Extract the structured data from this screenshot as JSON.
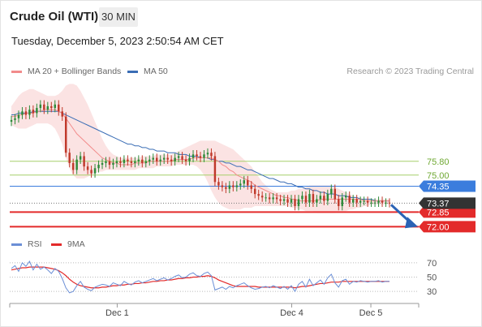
{
  "header": {
    "instrument": "Crude Oil (WTI)",
    "interval": "30 MIN",
    "timestamp": "Tuesday, December 5, 2023 2:50:54 AM CET"
  },
  "legend": {
    "ma20_label": "MA 20 + Bollinger Bands",
    "ma50_label": "MA 50",
    "copyright": "Research © 2023 Trading Central"
  },
  "rsi_legend": {
    "rsi_label": "RSI",
    "ma_label": "9MA"
  },
  "colors": {
    "ma20": "#f28b8b",
    "ma50": "#3a6db5",
    "bollinger_fill": "#fbe0e0",
    "candle_up": "#2e8b3a",
    "candle_down": "#c0392b",
    "resistance": "#a6cf6b",
    "pivot": "#3b7ddd",
    "support": "#e32a2a",
    "current": "#333333",
    "rsi": "#6b8fd6",
    "rsi_ma": "#e32a2a"
  },
  "chart_data": [
    {
      "type": "candlestick",
      "x_labels": [
        "Dec 1",
        "Dec 4",
        "Dec 5"
      ],
      "levels": [
        {
          "value": 75.8,
          "label": "75.80",
          "kind": "resistance"
        },
        {
          "value": 75.0,
          "label": "75.00",
          "kind": "resistance"
        },
        {
          "value": 74.35,
          "label": "74.35",
          "kind": "pivot"
        },
        {
          "value": 72.85,
          "label": "72.85",
          "kind": "support"
        },
        {
          "value": 72.0,
          "label": "72.00",
          "kind": "support"
        }
      ],
      "current_price": {
        "value": 73.37,
        "label": "73.37"
      },
      "ylim": [
        71.5,
        80.6
      ],
      "close": [
        78.2,
        78.3,
        78.5,
        78.7,
        78.5,
        78.8,
        78.6,
        78.9,
        79.1,
        78.8,
        79.0,
        78.9,
        79.1,
        78.7,
        78.4,
        76.3,
        75.7,
        75.3,
        75.9,
        76.1,
        75.5,
        75.3,
        75.1,
        75.4,
        75.6,
        75.7,
        75.8,
        75.6,
        75.7,
        75.8,
        75.7,
        75.9,
        75.8,
        75.7,
        75.8,
        75.9,
        75.7,
        75.8,
        75.9,
        76.0,
        75.8,
        75.9,
        76.0,
        75.9,
        75.8,
        76.0,
        76.1,
        75.9,
        75.8,
        76.0,
        76.2,
        76.1,
        76.0,
        76.2,
        76.3,
        76.1,
        74.6,
        74.4,
        74.3,
        74.2,
        74.4,
        74.3,
        74.4,
        74.5,
        74.7,
        74.4,
        74.2,
        73.9,
        73.8,
        73.7,
        73.7,
        73.6,
        73.7,
        73.6,
        73.5,
        73.6,
        73.4,
        73.6,
        73.2,
        73.6,
        73.8,
        73.4,
        73.9,
        73.4,
        73.6,
        73.8,
        73.5,
        73.9,
        74.2,
        73.6,
        73.2,
        73.7,
        73.8,
        73.4,
        73.6,
        73.4,
        73.5,
        73.5,
        73.4,
        73.4,
        73.4,
        73.5,
        73.4,
        73.4,
        73.37
      ],
      "ma20": [
        78.4,
        78.4,
        78.5,
        78.5,
        78.6,
        78.6,
        78.6,
        78.7,
        78.7,
        78.8,
        78.8,
        78.8,
        78.8,
        78.7,
        78.6,
        78.3,
        78.0,
        77.7,
        77.4,
        77.2,
        77.0,
        76.8,
        76.6,
        76.4,
        76.2,
        76.0,
        75.9,
        75.8,
        75.7,
        75.7,
        75.6,
        75.6,
        75.6,
        75.6,
        75.7,
        75.7,
        75.7,
        75.7,
        75.8,
        75.8,
        75.8,
        75.8,
        75.8,
        75.8,
        75.8,
        75.9,
        75.9,
        75.9,
        75.9,
        75.9,
        76.0,
        76.0,
        76.0,
        76.0,
        76.0,
        76.0,
        75.9,
        75.8,
        75.6,
        75.5,
        75.3,
        75.2,
        75.0,
        74.9,
        74.8,
        74.7,
        74.6,
        74.4,
        74.3,
        74.2,
        74.1,
        74.0,
        73.9,
        73.8,
        73.8,
        73.7,
        73.7,
        73.6,
        73.6,
        73.5,
        73.5,
        73.5,
        73.5,
        73.5,
        73.5,
        73.6,
        73.6,
        73.6,
        73.6,
        73.6,
        73.6,
        73.6,
        73.6,
        73.6,
        73.6,
        73.6,
        73.6,
        73.5,
        73.5,
        73.5,
        73.5,
        73.5,
        73.5,
        73.5,
        73.5
      ],
      "ma50": [
        78.5,
        78.5,
        78.6,
        78.6,
        78.6,
        78.6,
        78.7,
        78.7,
        78.7,
        78.7,
        78.7,
        78.7,
        78.7,
        78.7,
        78.6,
        78.5,
        78.4,
        78.3,
        78.2,
        78.1,
        78.0,
        77.9,
        77.8,
        77.7,
        77.6,
        77.5,
        77.4,
        77.3,
        77.2,
        77.1,
        77.0,
        76.9,
        76.8,
        76.8,
        76.7,
        76.7,
        76.6,
        76.6,
        76.5,
        76.5,
        76.4,
        76.4,
        76.4,
        76.3,
        76.3,
        76.3,
        76.2,
        76.2,
        76.2,
        76.1,
        76.1,
        76.1,
        76.0,
        76.0,
        76.0,
        75.9,
        75.9,
        75.8,
        75.8,
        75.7,
        75.7,
        75.6,
        75.5,
        75.5,
        75.4,
        75.3,
        75.3,
        75.2,
        75.1,
        75.0,
        74.9,
        74.8,
        74.8,
        74.7,
        74.6,
        74.6,
        74.5,
        74.5,
        74.4,
        74.3,
        74.3,
        74.2,
        74.2,
        74.1,
        74.1,
        74.0,
        74.0,
        73.9,
        73.9,
        73.9,
        73.8,
        73.8,
        73.8,
        73.7,
        73.7,
        73.7,
        73.6,
        73.6,
        73.6,
        73.6,
        73.5,
        73.5,
        73.5,
        73.5,
        73.5
      ],
      "bb_upper": [
        79.0,
        79.3,
        79.6,
        79.8,
        79.9,
        80.0,
        80.0,
        79.9,
        79.8,
        79.7,
        79.6,
        79.6,
        79.6,
        79.7,
        79.9,
        80.2,
        80.3,
        80.3,
        80.2,
        79.9,
        79.5,
        79.1,
        78.6,
        78.1,
        77.6,
        77.1,
        76.7,
        76.4,
        76.2,
        76.1,
        76.0,
        76.0,
        76.0,
        76.0,
        76.0,
        76.0,
        76.1,
        76.1,
        76.1,
        76.1,
        76.2,
        76.2,
        76.2,
        76.2,
        76.2,
        76.3,
        76.4,
        76.5,
        76.6,
        76.7,
        76.8,
        76.9,
        77.0,
        77.0,
        77.0,
        77.0,
        77.0,
        76.9,
        76.8,
        76.7,
        76.6,
        76.5,
        76.3,
        76.1,
        75.9,
        75.7,
        75.5,
        75.2,
        74.9,
        74.6,
        74.4,
        74.2,
        74.1,
        74.0,
        74.0,
        74.0,
        74.0,
        74.1,
        74.1,
        74.2,
        74.2,
        74.3,
        74.4,
        74.4,
        74.4,
        74.4,
        74.4,
        74.4,
        74.4,
        74.3,
        74.2,
        74.1,
        74.0,
        73.9,
        73.8,
        73.7,
        73.7,
        73.6,
        73.6,
        73.6,
        73.6,
        73.6,
        73.6,
        73.6,
        73.6
      ],
      "bb_lower": [
        77.9,
        77.8,
        77.7,
        77.7,
        77.7,
        77.8,
        77.9,
        78.0,
        78.0,
        78.0,
        78.0,
        77.9,
        77.7,
        77.3,
        76.8,
        76.0,
        75.4,
        75.0,
        74.8,
        74.8,
        74.8,
        74.9,
        75.0,
        75.1,
        75.2,
        75.2,
        75.3,
        75.3,
        75.3,
        75.3,
        75.3,
        75.3,
        75.3,
        75.3,
        75.3,
        75.4,
        75.4,
        75.4,
        75.4,
        75.4,
        75.5,
        75.5,
        75.5,
        75.5,
        75.5,
        75.6,
        75.6,
        75.6,
        75.6,
        75.6,
        75.6,
        75.5,
        75.3,
        75.0,
        74.6,
        74.1,
        73.7,
        73.4,
        73.2,
        73.1,
        73.0,
        73.0,
        73.0,
        73.0,
        73.1,
        73.1,
        73.1,
        73.2,
        73.2,
        73.2,
        73.2,
        73.2,
        73.2,
        73.2,
        73.2,
        73.2,
        73.2,
        73.1,
        73.1,
        73.0,
        73.0,
        72.9,
        72.9,
        72.9,
        72.8,
        72.8,
        72.8,
        72.8,
        72.8,
        72.8,
        72.9,
        72.9,
        72.9,
        73.0,
        73.0,
        73.1,
        73.1,
        73.2,
        73.2,
        73.3,
        73.3,
        73.3,
        73.3,
        73.3,
        73.3
      ]
    },
    {
      "type": "line",
      "name": "RSI",
      "y_ticks": [
        70,
        50,
        30
      ],
      "ylim": [
        20,
        80
      ],
      "rsi": [
        62,
        66,
        58,
        70,
        65,
        72,
        60,
        68,
        61,
        64,
        60,
        55,
        62,
        58,
        48,
        35,
        28,
        30,
        38,
        44,
        36,
        33,
        31,
        36,
        38,
        40,
        39,
        37,
        42,
        40,
        38,
        44,
        41,
        39,
        43,
        45,
        42,
        44,
        46,
        48,
        45,
        47,
        49,
        46,
        48,
        51,
        53,
        49,
        50,
        54,
        56,
        52,
        51,
        55,
        57,
        52,
        32,
        34,
        36,
        33,
        37,
        35,
        38,
        40,
        42,
        38,
        35,
        33,
        34,
        36,
        37,
        35,
        38,
        36,
        34,
        37,
        33,
        38,
        30,
        40,
        44,
        36,
        47,
        38,
        42,
        46,
        40,
        49,
        54,
        42,
        36,
        45,
        47,
        40,
        44,
        43,
        45,
        44,
        43,
        44,
        44,
        45,
        43,
        44,
        44
      ],
      "rsi_ma": [
        60,
        61,
        62,
        63,
        63,
        64,
        64,
        64,
        64,
        64,
        63,
        62,
        61,
        59,
        56,
        52,
        47,
        43,
        40,
        38,
        37,
        36,
        35,
        35,
        35,
        36,
        36,
        37,
        38,
        38,
        39,
        39,
        40,
        40,
        41,
        41,
        42,
        42,
        43,
        44,
        44,
        45,
        45,
        46,
        46,
        47,
        48,
        48,
        49,
        49,
        50,
        50,
        51,
        51,
        52,
        51,
        49,
        46,
        44,
        42,
        40,
        38,
        37,
        37,
        37,
        37,
        37,
        37,
        36,
        36,
        36,
        36,
        36,
        36,
        36,
        36,
        36,
        36,
        35,
        36,
        37,
        37,
        38,
        39,
        40,
        41,
        41,
        42,
        43,
        43,
        43,
        44,
        44,
        44,
        44,
        44,
        44,
        44,
        44,
        44,
        44,
        44,
        44,
        44,
        44
      ]
    }
  ]
}
